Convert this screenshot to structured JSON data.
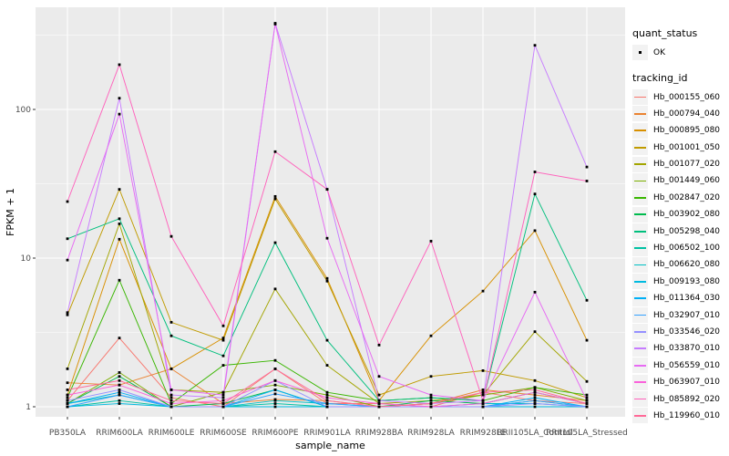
{
  "style": {
    "background": "#FFFFFF",
    "panel_bg": "#EBEBEB",
    "grid_color": "#FFFFFF",
    "tick_label_color": "#4D4D4D",
    "axis_title_color": "#000000",
    "legend_key_bg": "#F2F2F2",
    "point_color": "#000000"
  },
  "chart_data": {
    "type": "line",
    "title": "",
    "xlabel": "sample_name",
    "ylabel": "FPKM + 1",
    "y_scale": "log10",
    "y_ticks": [
      1,
      10,
      100
    ],
    "y_minor_ticks": [
      3.162,
      31.62,
      316.2
    ],
    "ylim": [
      0.86,
      470
    ],
    "grid": "major+minor, white on grey panel",
    "legend_position": "right",
    "marker": "small black square on every data point",
    "x_categories": [
      "PB350LA",
      "RRIM600LA",
      "RRIM600LE",
      "RRIM600SE",
      "RRIM600PE",
      "RRIM901LA",
      "RRIM928BA",
      "RRIM928LA",
      "RRIM928LE",
      "RRII105LA_Control",
      "RRII105LA_Stressed"
    ],
    "legend_quant": {
      "title": "quant_status",
      "items": [
        {
          "label": "OK",
          "marker": "point"
        }
      ]
    },
    "legend_tracking": {
      "title": "tracking_id"
    },
    "series": [
      {
        "name": "Hb_000155_060",
        "color": "#F8766D",
        "values": [
          1.1,
          2.9,
          1.15,
          1.0,
          1.8,
          1.05,
          1.05,
          1.0,
          1.25,
          1.1,
          1.05
        ]
      },
      {
        "name": "Hb_000794_040",
        "color": "#EA8331",
        "values": [
          1.45,
          1.4,
          1.8,
          1.05,
          1.12,
          1.1,
          1.0,
          1.05,
          1.3,
          1.2,
          1.1
        ]
      },
      {
        "name": "Hb_000895_080",
        "color": "#D89000",
        "values": [
          1.2,
          13.4,
          1.8,
          2.9,
          26.0,
          7.3,
          1.1,
          3.0,
          6.0,
          15.3,
          2.8
        ]
      },
      {
        "name": "Hb_001001_050",
        "color": "#C09B00",
        "values": [
          4.15,
          29.0,
          3.7,
          2.8,
          25.0,
          7.0,
          1.2,
          1.6,
          1.75,
          1.5,
          1.15
        ]
      },
      {
        "name": "Hb_001077_020",
        "color": "#A3A500",
        "values": [
          1.8,
          17.0,
          1.3,
          1.25,
          6.2,
          1.9,
          1.05,
          1.1,
          1.2,
          3.2,
          1.48
        ]
      },
      {
        "name": "Hb_001449_060",
        "color": "#7CAE00",
        "values": [
          1.05,
          1.7,
          1.0,
          1.25,
          1.4,
          1.2,
          1.0,
          1.05,
          1.2,
          1.35,
          1.1
        ]
      },
      {
        "name": "Hb_002847_020",
        "color": "#39B600",
        "values": [
          1.15,
          7.1,
          1.05,
          1.9,
          2.05,
          1.25,
          1.1,
          1.15,
          1.1,
          1.35,
          1.2
        ]
      },
      {
        "name": "Hb_003902_080",
        "color": "#00BB4E",
        "values": [
          1.05,
          1.6,
          1.0,
          1.05,
          1.3,
          1.0,
          1.0,
          1.1,
          1.05,
          1.25,
          1.05
        ]
      },
      {
        "name": "Hb_005298_040",
        "color": "#00BF7D",
        "values": [
          13.5,
          18.4,
          3.0,
          2.2,
          12.7,
          2.8,
          1.1,
          1.15,
          1.1,
          27.0,
          5.2
        ]
      },
      {
        "name": "Hb_006502_100",
        "color": "#00C1A3",
        "values": [
          1.0,
          1.1,
          1.0,
          1.0,
          1.05,
          1.0,
          1.0,
          1.0,
          1.0,
          1.1,
          1.0
        ]
      },
      {
        "name": "Hb_006620_080",
        "color": "#00BFC4",
        "values": [
          1.05,
          1.2,
          1.0,
          1.0,
          1.1,
          1.05,
          1.0,
          1.0,
          1.05,
          1.05,
          1.0
        ]
      },
      {
        "name": "Hb_009193_080",
        "color": "#00BAE0",
        "values": [
          1.0,
          1.05,
          1.0,
          1.0,
          1.0,
          1.0,
          1.0,
          1.0,
          1.0,
          1.0,
          1.0
        ]
      },
      {
        "name": "Hb_011364_030",
        "color": "#00B0F6",
        "values": [
          1.05,
          1.25,
          1.0,
          1.0,
          1.3,
          1.0,
          1.0,
          1.0,
          1.0,
          1.15,
          1.0
        ]
      },
      {
        "name": "Hb_032907_010",
        "color": "#35A2FF",
        "values": [
          1.0,
          1.2,
          1.0,
          1.0,
          1.22,
          1.05,
          1.0,
          1.0,
          1.0,
          1.1,
          1.0
        ]
      },
      {
        "name": "Hb_033546_020",
        "color": "#9590FF",
        "values": [
          1.1,
          1.3,
          1.0,
          1.0,
          1.5,
          1.0,
          1.0,
          1.0,
          1.0,
          1.05,
          1.0
        ]
      },
      {
        "name": "Hb_033870_010",
        "color": "#C77CFF",
        "values": [
          4.3,
          119.0,
          1.2,
          1.15,
          380.0,
          29.0,
          1.1,
          1.05,
          1.1,
          270.0,
          41.0
        ]
      },
      {
        "name": "Hb_056559_010",
        "color": "#E76BF3",
        "values": [
          9.7,
          93.0,
          1.3,
          1.2,
          375.0,
          13.6,
          1.6,
          1.2,
          1.1,
          5.9,
          1.1
        ]
      },
      {
        "name": "Hb_063907_010",
        "color": "#FA62DB",
        "values": [
          1.2,
          1.4,
          1.05,
          1.1,
          1.5,
          1.15,
          1.05,
          1.0,
          1.05,
          1.25,
          1.05
        ]
      },
      {
        "name": "Hb_085892_020",
        "color": "#FF62BC",
        "values": [
          24.0,
          200.0,
          14.0,
          3.5,
          52.0,
          29.0,
          2.6,
          13.0,
          1.1,
          38.0,
          33.0
        ]
      },
      {
        "name": "Hb_119960_010",
        "color": "#FF6A98",
        "values": [
          1.3,
          1.5,
          1.1,
          1.05,
          1.8,
          1.1,
          1.0,
          1.05,
          1.25,
          1.3,
          1.05
        ]
      }
    ]
  }
}
